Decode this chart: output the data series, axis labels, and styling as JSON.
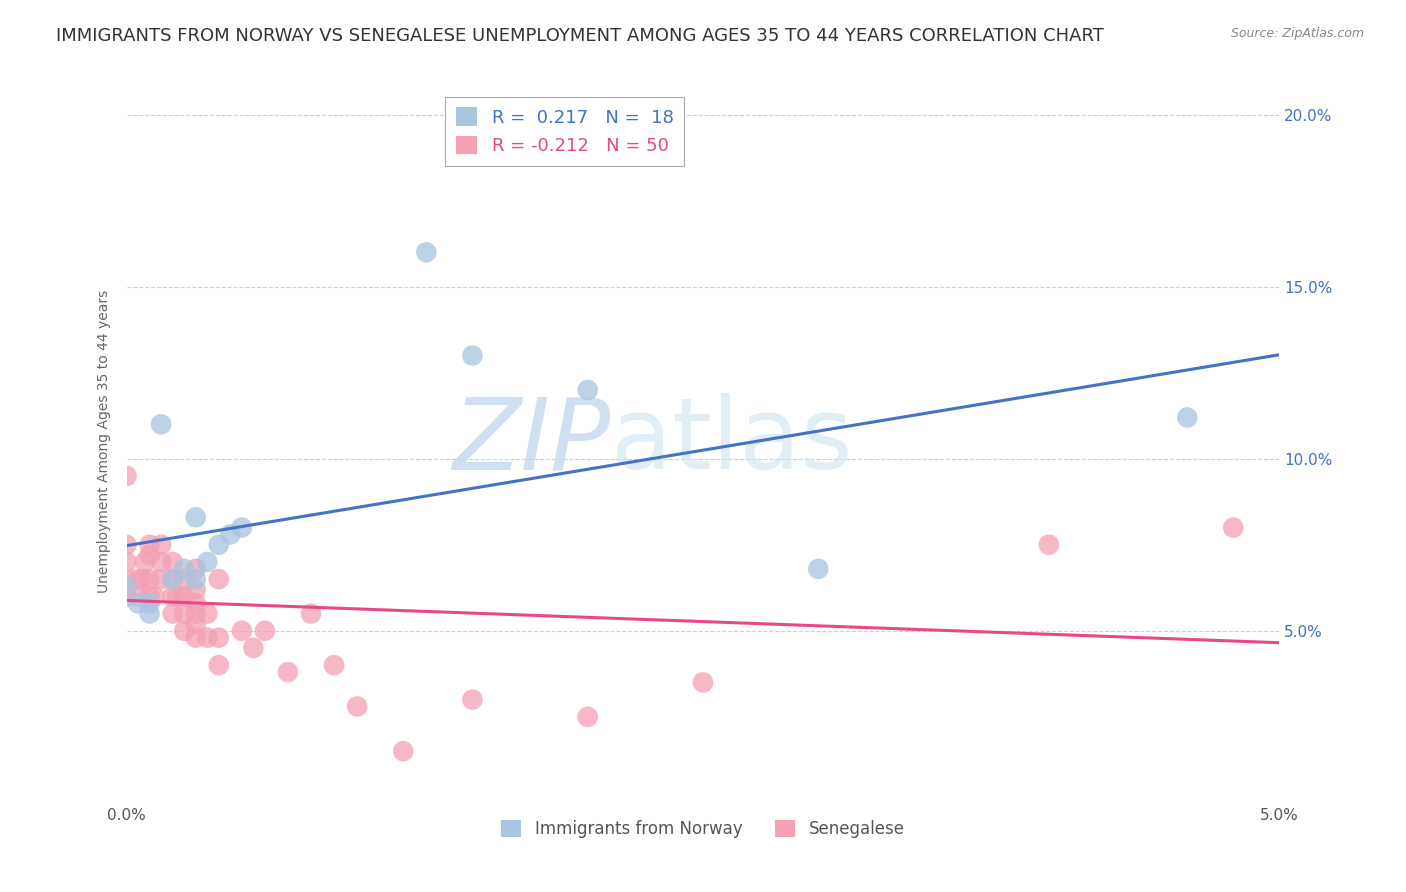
{
  "title": "IMMIGRANTS FROM NORWAY VS SENEGALESE UNEMPLOYMENT AMONG AGES 35 TO 44 YEARS CORRELATION CHART",
  "source": "Source: ZipAtlas.com",
  "ylabel": "Unemployment Among Ages 35 to 44 years",
  "xlim": [
    0.0,
    0.05
  ],
  "ylim": [
    0.0,
    0.21
  ],
  "norway_R": 0.217,
  "norway_N": 18,
  "senegal_R": -0.212,
  "senegal_N": 50,
  "norway_color": "#a8c4e0",
  "senegal_color": "#f4a0b5",
  "norway_line_color": "#4472C4",
  "senegal_line_color": "#E84888",
  "background_color": "#ffffff",
  "grid_color": "#d0d0d0",
  "norway_points_x": [
    0.0,
    0.0005,
    0.001,
    0.001,
    0.0015,
    0.002,
    0.0025,
    0.003,
    0.003,
    0.0035,
    0.004,
    0.0045,
    0.005,
    0.013,
    0.015,
    0.02,
    0.03,
    0.046
  ],
  "norway_points_y": [
    0.063,
    0.058,
    0.058,
    0.055,
    0.11,
    0.065,
    0.068,
    0.065,
    0.083,
    0.07,
    0.075,
    0.078,
    0.08,
    0.16,
    0.13,
    0.12,
    0.068,
    0.112
  ],
  "senegal_points_x": [
    0.0,
    0.0,
    0.0,
    0.0,
    0.0,
    0.0005,
    0.0005,
    0.0007,
    0.0008,
    0.001,
    0.001,
    0.001,
    0.001,
    0.0012,
    0.0015,
    0.0015,
    0.0015,
    0.002,
    0.002,
    0.002,
    0.002,
    0.0022,
    0.0025,
    0.0025,
    0.0025,
    0.0025,
    0.003,
    0.003,
    0.003,
    0.003,
    0.003,
    0.003,
    0.0035,
    0.0035,
    0.004,
    0.004,
    0.004,
    0.005,
    0.0055,
    0.006,
    0.007,
    0.008,
    0.009,
    0.01,
    0.012,
    0.015,
    0.02,
    0.025,
    0.04,
    0.048
  ],
  "senegal_points_y": [
    0.06,
    0.065,
    0.07,
    0.075,
    0.095,
    0.06,
    0.065,
    0.065,
    0.07,
    0.06,
    0.065,
    0.072,
    0.075,
    0.06,
    0.065,
    0.07,
    0.075,
    0.055,
    0.06,
    0.065,
    0.07,
    0.06,
    0.05,
    0.055,
    0.06,
    0.065,
    0.048,
    0.052,
    0.055,
    0.058,
    0.062,
    0.068,
    0.048,
    0.055,
    0.04,
    0.048,
    0.065,
    0.05,
    0.045,
    0.05,
    0.038,
    0.055,
    0.04,
    0.028,
    0.015,
    0.03,
    0.025,
    0.035,
    0.075,
    0.08
  ],
  "yticks": [
    0.0,
    0.05,
    0.1,
    0.15,
    0.2
  ],
  "ytick_labels_right": [
    "",
    "5.0%",
    "10.0%",
    "15.0%",
    "20.0%"
  ],
  "watermark_zip": "ZIP",
  "watermark_atlas": "atlas",
  "title_fontsize": 13,
  "axis_fontsize": 11,
  "legend_fontsize": 13
}
